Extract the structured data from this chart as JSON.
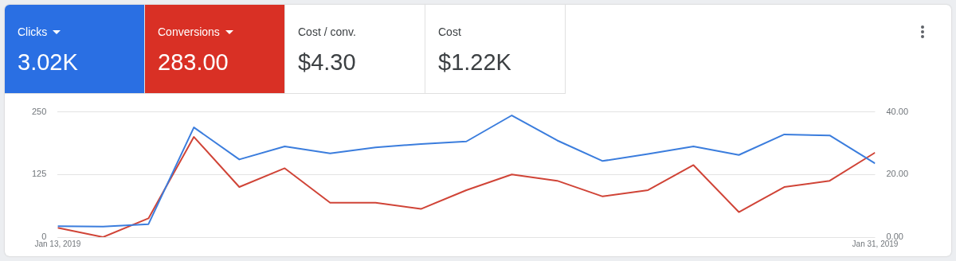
{
  "chart_data": [
    {
      "type": "other",
      "annotations": [
        "Clicks",
        "3.02K",
        "Conversions",
        "283.00",
        "Cost / conv.",
        "$4.30",
        "Cost",
        "$1.22K"
      ],
      "colors": [
        "#2a6fe3",
        "#d93025",
        "#ffffff",
        "#ffffff"
      ]
    },
    {
      "type": "line",
      "x": [
        "2019-01-13",
        "2019-01-14",
        "2019-01-15",
        "2019-01-16",
        "2019-01-17",
        "2019-01-18",
        "2019-01-19",
        "2019-01-20",
        "2019-01-21",
        "2019-01-22",
        "2019-01-23",
        "2019-01-24",
        "2019-01-25",
        "2019-01-26",
        "2019-01-27",
        "2019-01-28",
        "2019-01-29",
        "2019-01-30",
        "2019-01-31"
      ],
      "series": [
        {
          "color": "#3b7ddd",
          "values": [
            22,
            21,
            26,
            219,
            155,
            181,
            167,
            179,
            186,
            191,
            243,
            193,
            152,
            166,
            181,
            164,
            205,
            203,
            147
          ]
        },
        {
          "color": "#d04437",
          "axis": "y2",
          "values": [
            3,
            0,
            6,
            32,
            16,
            22,
            11,
            11,
            9,
            15,
            20,
            18,
            13,
            15,
            23,
            8,
            16,
            18,
            27
          ]
        }
      ],
      "xlim": [
        "2019-01-13",
        "2019-01-31"
      ],
      "xticks": [
        {
          "value": "2019-01-13",
          "label": "Jan 13, 2019"
        },
        {
          "value": "2019-01-31",
          "label": "Jan 31, 2019"
        }
      ],
      "ylim": [
        0,
        250
      ],
      "yticks": [
        0,
        125,
        250
      ],
      "y2lim": [
        0,
        40
      ],
      "y2ticks": [
        {
          "value": 0,
          "label": "0.00"
        },
        {
          "value": 20,
          "label": "20.00"
        },
        {
          "value": 40,
          "label": "40.00"
        }
      ],
      "grid": "y",
      "legend": false,
      "marker": "none",
      "line_style": "solid"
    }
  ]
}
